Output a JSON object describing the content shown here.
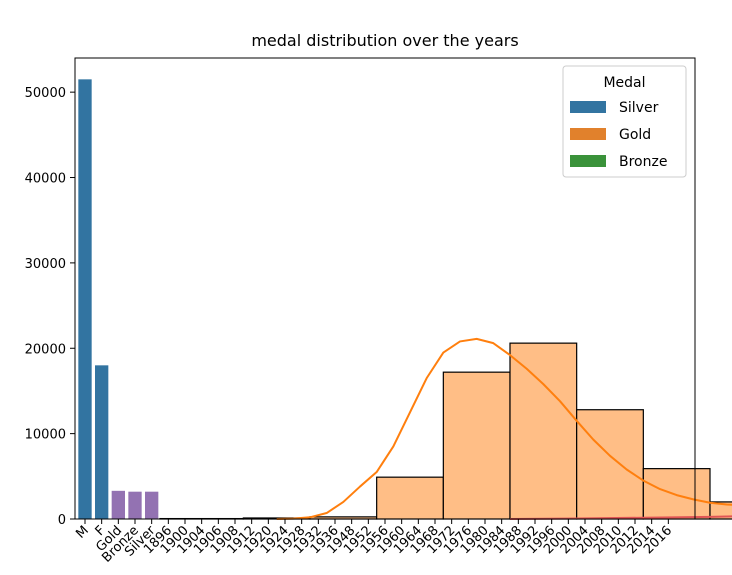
{
  "chart_data": {
    "type": "bar",
    "title": "medal distribution over the years",
    "xlabel": "",
    "ylabel": "",
    "ylim": [
      0,
      54000
    ],
    "yticks": [
      0,
      10000,
      20000,
      30000,
      40000,
      50000
    ],
    "tick_labels": [
      "M",
      "F",
      "Gold",
      "Bronze",
      "Silver",
      "1896",
      "1900",
      "1904",
      "1906",
      "1908",
      "1912",
      "1920",
      "1924",
      "1928",
      "1932",
      "1936",
      "1948",
      "1952",
      "1956",
      "1960",
      "1964",
      "1968",
      "1972",
      "1976",
      "1980",
      "1984",
      "1988",
      "1992",
      "1996",
      "2000",
      "2004",
      "2008",
      "2010",
      "2012",
      "2014",
      "2016"
    ],
    "categorical_bars": [
      {
        "category": "M",
        "value": 51500,
        "color": "#3274a1"
      },
      {
        "category": "F",
        "value": 18000,
        "color": "#3274a1"
      },
      {
        "category": "Gold",
        "value": 3300,
        "color": "#9372b2"
      },
      {
        "category": "Bronze",
        "value": 3200,
        "color": "#9372b2"
      },
      {
        "category": "Silver",
        "value": 3200,
        "color": "#9372b2"
      }
    ],
    "histogram": {
      "color": "#ffbe86",
      "edge_color": "#000000",
      "bin_edges": [
        "1896",
        "1908",
        "1920",
        "1932",
        "1948",
        "1960",
        "1972",
        "1984",
        "1996",
        "2004",
        "2012",
        "2016"
      ],
      "bins": [
        {
          "from": 5,
          "to": 10,
          "value": 50
        },
        {
          "from": 10,
          "to": 14,
          "value": 120
        },
        {
          "from": 14,
          "to": 18,
          "value": 250
        },
        {
          "from": 18,
          "to": 22,
          "value": 4900
        },
        {
          "from": 22,
          "to": 26,
          "value": 17200
        },
        {
          "from": 26,
          "to": 30,
          "value": 20600
        },
        {
          "from": 30,
          "to": 34,
          "value": 12800
        },
        {
          "from": 34,
          "to": 38,
          "value": 5900
        },
        {
          "from": 38,
          "to": 42,
          "value": 2000
        },
        {
          "from": 42,
          "to": 44,
          "value": 1500
        }
      ]
    },
    "kde": {
      "color": "#ff7f0e",
      "points": [
        [
          12,
          0
        ],
        [
          13,
          50
        ],
        [
          14,
          200
        ],
        [
          15,
          700
        ],
        [
          16,
          2000
        ],
        [
          17,
          3800
        ],
        [
          18,
          5500
        ],
        [
          19,
          8500
        ],
        [
          20,
          12500
        ],
        [
          21,
          16500
        ],
        [
          22,
          19500
        ],
        [
          23,
          20800
        ],
        [
          24,
          21100
        ],
        [
          25,
          20600
        ],
        [
          26,
          19200
        ],
        [
          27,
          17600
        ],
        [
          28,
          15800
        ],
        [
          29,
          13800
        ],
        [
          30,
          11500
        ],
        [
          31,
          9300
        ],
        [
          32,
          7400
        ],
        [
          33,
          5800
        ],
        [
          34,
          4500
        ],
        [
          35,
          3500
        ],
        [
          36,
          2800
        ],
        [
          37,
          2300
        ],
        [
          38,
          1900
        ],
        [
          39,
          1700
        ],
        [
          40,
          1600
        ],
        [
          41,
          1500
        ]
      ]
    },
    "red_series": {
      "color": "#e05555",
      "points": [
        [
          26,
          0
        ],
        [
          30,
          60
        ],
        [
          34,
          150
        ],
        [
          38,
          250
        ],
        [
          41,
          380
        ],
        [
          44,
          550
        ]
      ]
    },
    "legend": {
      "title": "Medal",
      "placement": "top-right",
      "entries": [
        {
          "label": "Silver",
          "color": "#3274a1"
        },
        {
          "label": "Gold",
          "color": "#e1812c"
        },
        {
          "label": "Bronze",
          "color": "#3a923a"
        }
      ]
    }
  }
}
